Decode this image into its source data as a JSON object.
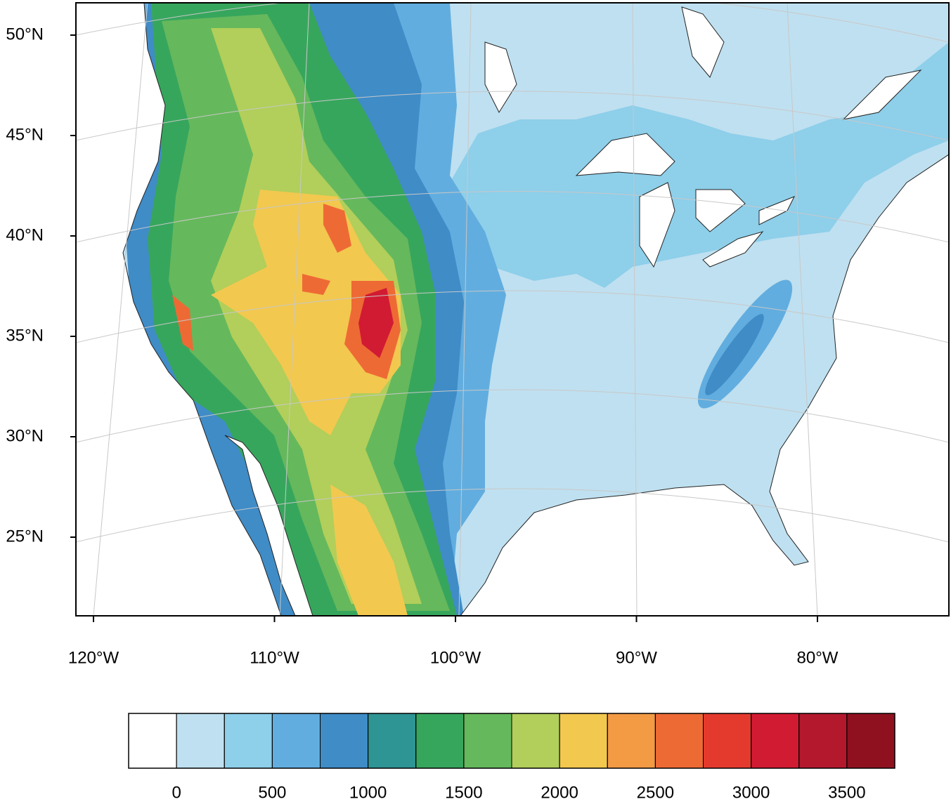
{
  "map": {
    "lat_labels": [
      {
        "value": 50,
        "label": "50°N"
      },
      {
        "value": 45,
        "label": "45°N"
      },
      {
        "value": 40,
        "label": "40°N"
      },
      {
        "value": 35,
        "label": "35°N"
      },
      {
        "value": 30,
        "label": "30°N"
      },
      {
        "value": 25,
        "label": "25°N"
      }
    ],
    "lon_labels": [
      {
        "value": -120,
        "label": "120°W"
      },
      {
        "value": -110,
        "label": "110°W"
      },
      {
        "value": -100,
        "label": "100°W"
      },
      {
        "value": -90,
        "label": "90°W"
      },
      {
        "value": -80,
        "label": "80°W"
      }
    ]
  },
  "colorbar": {
    "levels": [
      0,
      250,
      500,
      750,
      1000,
      1250,
      1500,
      1750,
      2000,
      2250,
      2500,
      2750,
      3000,
      3250,
      3500
    ],
    "ticks": [
      0,
      500,
      1000,
      1500,
      2000,
      2500,
      3000,
      3500
    ],
    "colors": [
      "#ffffff",
      "#bfe0f0",
      "#8ecfea",
      "#62addf",
      "#3f8cc7",
      "#2e9494",
      "#37a65d",
      "#66b85c",
      "#b1cf5a",
      "#f2c84f",
      "#f39a45",
      "#ee6a35",
      "#e43a2e",
      "#d11b32",
      "#b3182d",
      "#8f1120"
    ]
  }
}
